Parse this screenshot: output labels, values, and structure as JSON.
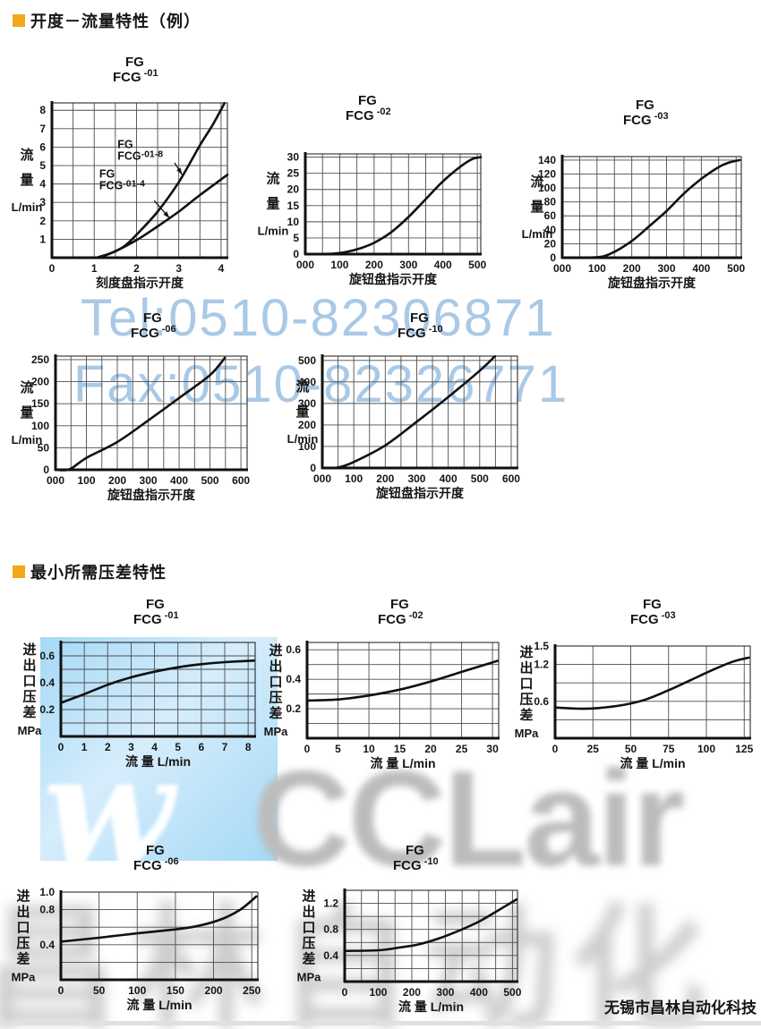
{
  "header1": {
    "title": "开度－流量特性（例）"
  },
  "header2": {
    "title": "最小所需压差特性"
  },
  "footer": {
    "company": "无锡市昌林自动化科技"
  },
  "watermark": {
    "tel": "Tel:0510-82306871",
    "fax": "Fax:0510-82326771",
    "logo_mark": "w",
    "logo_text": "CCLair",
    "cn_text": "昌林自动化",
    "blue_text_color": "#a9c9e6",
    "gray_color": "#bcbcbc",
    "highlight_color": "#aaddf6"
  },
  "colors": {
    "accent": "#f2a71b",
    "curve": "#111111",
    "grid": "#4d4d4d"
  },
  "chart_data": [
    {
      "type": "line",
      "id": "opening-flow-fg-fcg-01",
      "title": {
        "l1": "FG",
        "l2": "FCG",
        "sup": "-01"
      },
      "ylabel": "流量",
      "yunit": "L/min",
      "xlabel": "刻度盘指示开度",
      "xlim": [
        0,
        4.15
      ],
      "ylim": [
        0,
        8.4
      ],
      "xgrid": 0.5,
      "ygrid": 1,
      "xticks": {
        "vals": [
          0,
          1,
          2,
          3,
          4
        ],
        "labels": [
          "0",
          "1",
          "2",
          "3",
          "4"
        ]
      },
      "yticks": {
        "vals": [
          1,
          2,
          3,
          4,
          5,
          6,
          7,
          8
        ],
        "labels": [
          "1",
          "2",
          "3",
          "4",
          "5",
          "6",
          "7",
          "8"
        ]
      },
      "series": [
        {
          "name": "FG FCG-01-8",
          "points": [
            [
              1.05,
              0
            ],
            [
              1.35,
              0.2
            ],
            [
              1.7,
              0.6
            ],
            [
              2,
              1.25
            ],
            [
              2.5,
              2.5
            ],
            [
              3,
              4.1
            ],
            [
              3.5,
              6.1
            ],
            [
              3.8,
              7.2
            ],
            [
              4.08,
              8.38
            ]
          ]
        },
        {
          "name": "FG FCG-01-4",
          "points": [
            [
              1.05,
              0
            ],
            [
              1.45,
              0.3
            ],
            [
              2,
              0.95
            ],
            [
              2.5,
              1.7
            ],
            [
              3,
              2.5
            ],
            [
              3.5,
              3.4
            ],
            [
              4.15,
              4.5
            ]
          ]
        }
      ],
      "annotations": [
        {
          "l1": "FG",
          "l2": "FCG",
          "sup": "-01-8",
          "tx": 1.55,
          "ty": 5.95,
          "ax": 2.9,
          "ay": 5.15,
          "bx": 3.08,
          "by": 4.5
        },
        {
          "l1": "FG",
          "l2": "FCG",
          "sup": "-01-4",
          "tx": 1.12,
          "ty": 4.35,
          "ax": 2.42,
          "ay": 3.1,
          "bx": 2.78,
          "by": 2.15
        }
      ]
    },
    {
      "type": "line",
      "id": "opening-flow-fg-fcg-02",
      "title": {
        "l1": "FG",
        "l2": "FCG",
        "sup": "-02"
      },
      "ylabel": "流量",
      "yunit": "L/min",
      "xlabel": "旋钮盘指示开度",
      "xlim": [
        0,
        510
      ],
      "ylim": [
        0,
        31
      ],
      "xgrid": 50,
      "ygrid": 5,
      "xticks": {
        "vals": [
          0,
          100,
          200,
          300,
          400,
          500
        ],
        "labels": [
          "000",
          "100",
          "200",
          "300",
          "400",
          "500"
        ]
      },
      "yticks": {
        "vals": [
          0,
          5,
          10,
          15,
          20,
          25,
          30
        ],
        "labels": [
          "0",
          "5",
          "10",
          "15",
          "20",
          "25",
          "30"
        ]
      },
      "series": [
        {
          "points": [
            [
              0,
              0.05
            ],
            [
              80,
              0.15
            ],
            [
              120,
              0.7
            ],
            [
              160,
              1.8
            ],
            [
              200,
              3.5
            ],
            [
              250,
              6.8
            ],
            [
              300,
              11.5
            ],
            [
              350,
              17
            ],
            [
              400,
              22.5
            ],
            [
              450,
              27
            ],
            [
              485,
              29.4
            ],
            [
              510,
              30
            ]
          ]
        }
      ],
      "annotations": []
    },
    {
      "type": "line",
      "id": "opening-flow-fg-fcg-03",
      "title": {
        "l1": "FG",
        "l2": "FCG",
        "sup": "-03"
      },
      "ylabel": "流量",
      "yunit": "L/min",
      "xlabel": "旋钮盘指示开度",
      "xlim": [
        0,
        515
      ],
      "ylim": [
        0,
        145
      ],
      "xgrid": 50,
      "ygrid": 20,
      "xticks": {
        "vals": [
          0,
          100,
          200,
          300,
          400,
          500
        ],
        "labels": [
          "000",
          "100",
          "200",
          "300",
          "400",
          "500"
        ]
      },
      "yticks": {
        "vals": [
          0,
          20,
          40,
          60,
          80,
          100,
          120,
          140
        ],
        "labels": [
          "0",
          "20",
          "40",
          "60",
          "80",
          "100",
          "120",
          "140"
        ]
      },
      "series": [
        {
          "points": [
            [
              0,
              0.2
            ],
            [
              95,
              0.5
            ],
            [
              140,
              6
            ],
            [
              200,
              24
            ],
            [
              250,
              45
            ],
            [
              300,
              67
            ],
            [
              350,
              92
            ],
            [
              400,
              113
            ],
            [
              450,
              130
            ],
            [
              480,
              136.5
            ],
            [
              510,
              140
            ]
          ]
        }
      ],
      "annotations": []
    },
    {
      "type": "line",
      "id": "opening-flow-fg-fcg-06",
      "title": {
        "l1": "FG",
        "l2": "FCG",
        "sup": "-06"
      },
      "ylabel": "流量",
      "yunit": "L/min",
      "xlabel": "旋钮盘指示开度",
      "xlim": [
        0,
        620
      ],
      "ylim": [
        0,
        258
      ],
      "xgrid": 50,
      "ygrid": 50,
      "xticks": {
        "vals": [
          0,
          100,
          200,
          300,
          400,
          500,
          600
        ],
        "labels": [
          "000",
          "100",
          "200",
          "300",
          "400",
          "500",
          "600"
        ]
      },
      "yticks": {
        "vals": [
          0,
          50,
          100,
          150,
          200,
          250
        ],
        "labels": [
          "0",
          "50",
          "100",
          "150",
          "200",
          "250"
        ]
      },
      "series": [
        {
          "points": [
            [
              0,
              0
            ],
            [
              45,
              1
            ],
            [
              100,
              27
            ],
            [
              200,
              63
            ],
            [
              300,
              112
            ],
            [
              400,
              163
            ],
            [
              500,
              215
            ],
            [
              548,
              254
            ]
          ]
        }
      ],
      "annotations": []
    },
    {
      "type": "line",
      "id": "opening-flow-fg-fcg-10",
      "title": {
        "l1": "FG",
        "l2": "FCG",
        "sup": "-10"
      },
      "ylabel": "流量",
      "yunit": "L/min",
      "xlabel": "旋钮盘指示开度",
      "xlim": [
        0,
        620
      ],
      "ylim": [
        0,
        520
      ],
      "xgrid": 50,
      "ygrid": 100,
      "xticks": {
        "vals": [
          0,
          100,
          200,
          300,
          400,
          500,
          600
        ],
        "labels": [
          "000",
          "100",
          "200",
          "300",
          "400",
          "500",
          "600"
        ]
      },
      "yticks": {
        "vals": [
          0,
          100,
          200,
          300,
          400,
          500
        ],
        "labels": [
          "0",
          "100",
          "200",
          "300",
          "400",
          "500"
        ]
      },
      "series": [
        {
          "points": [
            [
              0,
              0
            ],
            [
              48,
              2
            ],
            [
              100,
              28
            ],
            [
              200,
              105
            ],
            [
              300,
              215
            ],
            [
              400,
              330
            ],
            [
              500,
              452
            ],
            [
              548,
              519
            ]
          ]
        }
      ],
      "annotations": []
    },
    {
      "type": "line",
      "id": "min-pressure-diff-fg-fcg-01",
      "title": {
        "l1": "FG",
        "l2": "FCG",
        "sup": "-01"
      },
      "ylabel": "进出口压差",
      "yunit": "MPa",
      "xlabel": "流 量 L/min",
      "xlim": [
        0,
        8.3
      ],
      "ylim": [
        0,
        0.7
      ],
      "xgrid": 1,
      "ygrid": 0.1,
      "xticks": {
        "vals": [
          0,
          1,
          2,
          3,
          4,
          5,
          6,
          7,
          8
        ],
        "labels": [
          "0",
          "1",
          "2",
          "3",
          "4",
          "5",
          "6",
          "7",
          "8"
        ]
      },
      "yticks": {
        "vals": [
          0.2,
          0.4,
          0.6
        ],
        "labels": [
          "0.2",
          "0.4",
          "0.6"
        ]
      },
      "series": [
        {
          "points": [
            [
              0,
              0.25
            ],
            [
              1,
              0.315
            ],
            [
              2,
              0.385
            ],
            [
              3,
              0.44
            ],
            [
              4,
              0.482
            ],
            [
              5,
              0.515
            ],
            [
              6,
              0.538
            ],
            [
              7,
              0.553
            ],
            [
              8.25,
              0.565
            ]
          ]
        }
      ],
      "annotations": []
    },
    {
      "type": "line",
      "id": "min-pressure-diff-fg-fcg-02",
      "title": {
        "l1": "FG",
        "l2": "FCG",
        "sup": "-02"
      },
      "ylabel": "进出口压差",
      "yunit": "MPa",
      "xlabel": "流 量 L/min",
      "xlim": [
        0,
        31
      ],
      "ylim": [
        0,
        0.65
      ],
      "xgrid": 5,
      "ygrid": 0.1,
      "xticks": {
        "vals": [
          0,
          5,
          10,
          15,
          20,
          25,
          30
        ],
        "labels": [
          "0",
          "5",
          "10",
          "15",
          "20",
          "25",
          "30"
        ]
      },
      "yticks": {
        "vals": [
          0.2,
          0.4,
          0.6
        ],
        "labels": [
          "0.2",
          "0.4",
          "0.6"
        ]
      },
      "series": [
        {
          "points": [
            [
              0,
              0.255
            ],
            [
              5,
              0.263
            ],
            [
              10,
              0.29
            ],
            [
              15,
              0.33
            ],
            [
              20,
              0.385
            ],
            [
              25,
              0.45
            ],
            [
              30.8,
              0.525
            ]
          ]
        }
      ],
      "annotations": []
    },
    {
      "type": "line",
      "id": "min-pressure-diff-fg-fcg-03",
      "title": {
        "l1": "FG",
        "l2": "FCG",
        "sup": "-03"
      },
      "ylabel": "进出口压差",
      "yunit": "MPa",
      "xlabel": "流 量 L/min",
      "xlim": [
        0,
        129
      ],
      "ylim": [
        0,
        1.5
      ],
      "xgrid": 25,
      "ygrid": 0.3,
      "xticks": {
        "vals": [
          0,
          25,
          50,
          75,
          100,
          125
        ],
        "labels": [
          "0",
          "25",
          "50",
          "75",
          "100",
          "125"
        ]
      },
      "yticks": {
        "vals": [
          0.6,
          1.2,
          1.5
        ],
        "labels": [
          "0.6",
          "1.2",
          "1.5"
        ]
      },
      "series": [
        {
          "points": [
            [
              0,
              0.5
            ],
            [
              15,
              0.48
            ],
            [
              28,
              0.49
            ],
            [
              45,
              0.54
            ],
            [
              60,
              0.63
            ],
            [
              75,
              0.78
            ],
            [
              90,
              0.95
            ],
            [
              105,
              1.12
            ],
            [
              118,
              1.25
            ],
            [
              128,
              1.31
            ]
          ]
        }
      ],
      "annotations": []
    },
    {
      "type": "line",
      "id": "min-pressure-diff-fg-fcg-06",
      "title": {
        "l1": "FG",
        "l2": "FCG",
        "sup": "-06"
      },
      "ylabel": "进出口压差",
      "yunit": "MPa",
      "xlabel": "流 量 L/min",
      "xlim": [
        0,
        258
      ],
      "ylim": [
        0,
        1.0
      ],
      "xgrid": 50,
      "ygrid": 0.2,
      "xticks": {
        "vals": [
          0,
          50,
          100,
          150,
          200,
          250
        ],
        "labels": [
          "0",
          "50",
          "100",
          "150",
          "200",
          "250"
        ]
      },
      "yticks": {
        "vals": [
          0.4,
          0.8,
          1.0
        ],
        "labels": [
          "0.4",
          "0.8",
          "1.0"
        ]
      },
      "series": [
        {
          "points": [
            [
              0,
              0.435
            ],
            [
              50,
              0.48
            ],
            [
              100,
              0.53
            ],
            [
              150,
              0.575
            ],
            [
              180,
              0.615
            ],
            [
              210,
              0.69
            ],
            [
              235,
              0.8
            ],
            [
              256,
              0.95
            ]
          ]
        }
      ],
      "annotations": []
    },
    {
      "type": "line",
      "id": "min-pressure-diff-fg-fcg-10",
      "title": {
        "l1": "FG",
        "l2": "FCG",
        "sup": "-10"
      },
      "ylabel": "进出口压差",
      "yunit": "MPa",
      "xlabel": "流 量 L/min",
      "xlim": [
        0,
        515
      ],
      "ylim": [
        0,
        1.4
      ],
      "xgrid": 50,
      "ygrid": 0.2,
      "xticks": {
        "vals": [
          0,
          100,
          200,
          300,
          400,
          500
        ],
        "labels": [
          "0",
          "100",
          "200",
          "300",
          "400",
          "500"
        ]
      },
      "yticks": {
        "vals": [
          0.4,
          0.8,
          1.2
        ],
        "labels": [
          "0.4",
          "0.8",
          "1.2"
        ]
      },
      "series": [
        {
          "points": [
            [
              0,
              0.47
            ],
            [
              100,
              0.48
            ],
            [
              160,
              0.52
            ],
            [
              220,
              0.57
            ],
            [
              280,
              0.66
            ],
            [
              340,
              0.78
            ],
            [
              400,
              0.92
            ],
            [
              460,
              1.1
            ],
            [
              512,
              1.26
            ]
          ]
        }
      ],
      "annotations": []
    }
  ]
}
